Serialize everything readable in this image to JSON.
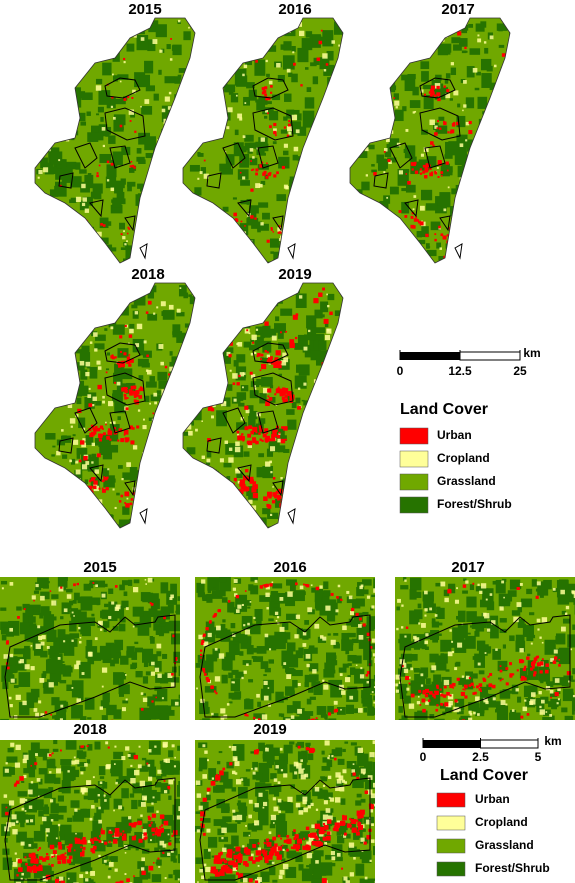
{
  "top": {
    "panels": [
      {
        "year": "2015"
      },
      {
        "year": "2016"
      },
      {
        "year": "2017"
      },
      {
        "year": "2018"
      },
      {
        "year": "2019"
      }
    ],
    "scale_bar": {
      "ticks": [
        0,
        12.5,
        25
      ],
      "unit": "km"
    },
    "legend": {
      "title": "Land Cover",
      "items": [
        {
          "label": "Urban",
          "color": "#ff0000"
        },
        {
          "label": "Cropland",
          "color": "#ffff99"
        },
        {
          "label": "Grassland",
          "color": "#70a800"
        },
        {
          "label": "Forest/Shrub",
          "color": "#267300"
        }
      ]
    }
  },
  "bottom": {
    "panels": [
      {
        "year": "2015"
      },
      {
        "year": "2016"
      },
      {
        "year": "2017"
      },
      {
        "year": "2018"
      },
      {
        "year": "2019"
      }
    ],
    "scale_bar": {
      "ticks": [
        0,
        2.5,
        5
      ],
      "unit": "km"
    },
    "legend": {
      "title": "Land Cover",
      "items": [
        {
          "label": "Urban",
          "color": "#ff0000"
        },
        {
          "label": "Cropland",
          "color": "#ffff99"
        },
        {
          "label": "Grassland",
          "color": "#70a800"
        },
        {
          "label": "Forest/Shrub",
          "color": "#267300"
        }
      ]
    }
  }
}
